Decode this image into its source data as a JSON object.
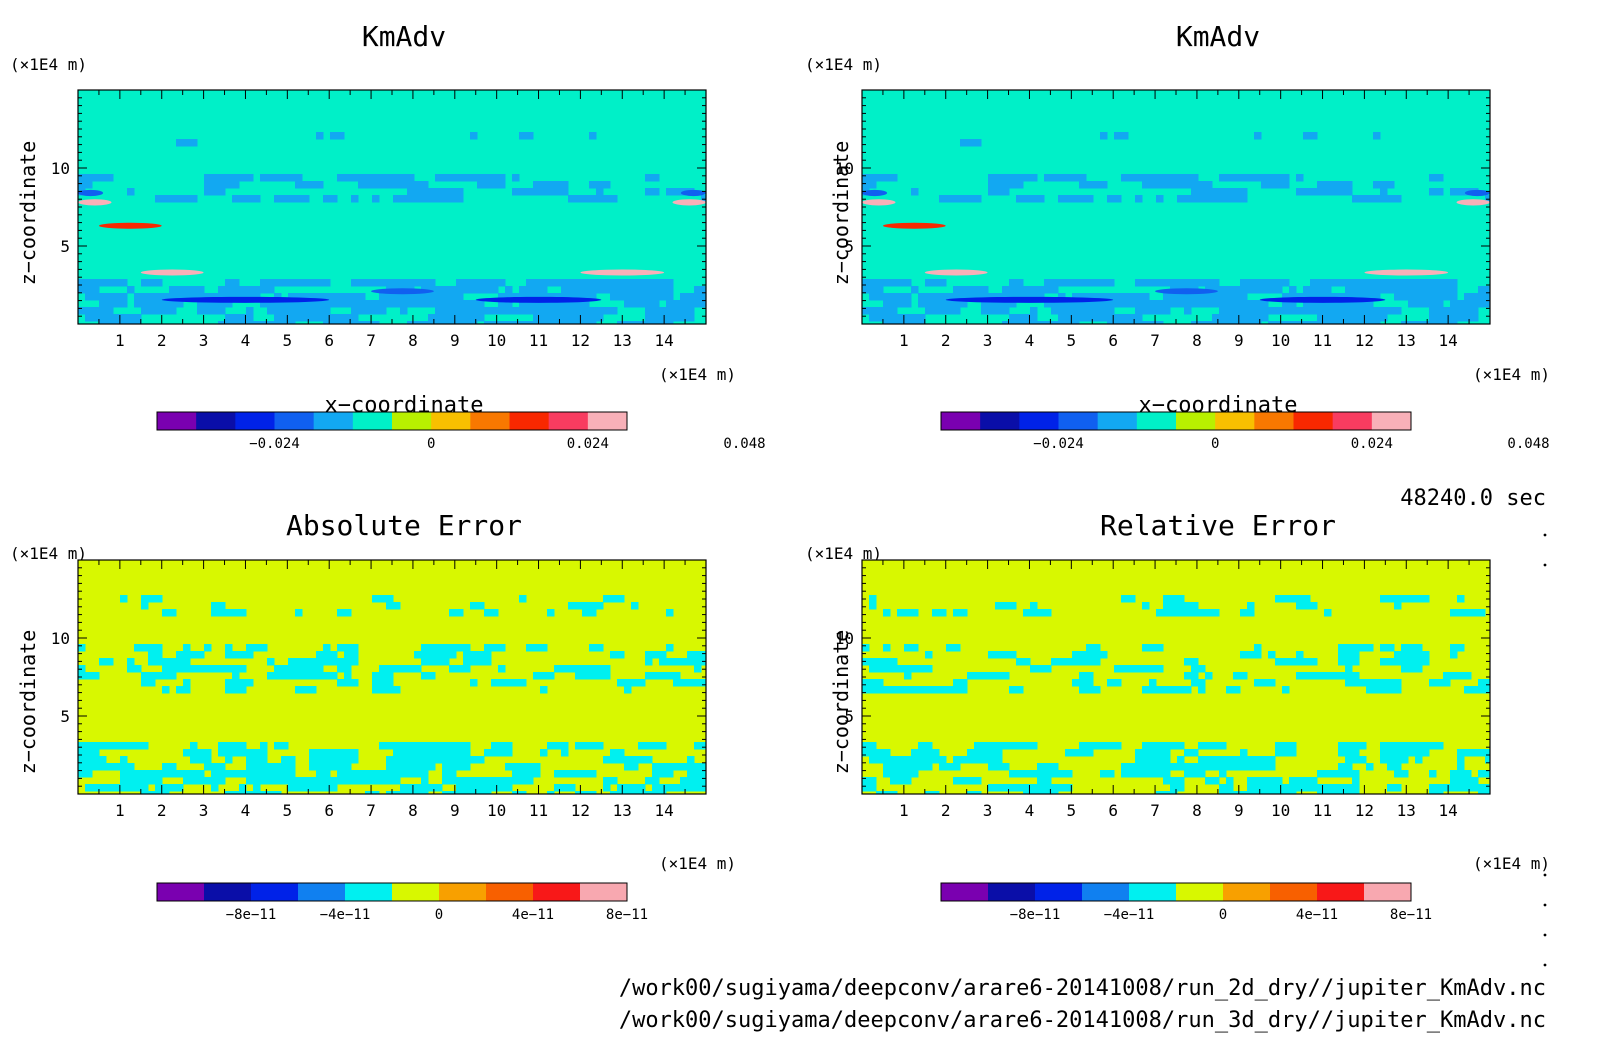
{
  "shared": {
    "x_ticks": [
      "1",
      "2",
      "3",
      "4",
      "5",
      "6",
      "7",
      "8",
      "9",
      "10",
      "11",
      "12",
      "13",
      "14"
    ],
    "y_ticks": [
      "5",
      "10"
    ],
    "x_unit": "(×1E4 m)",
    "y_unit": "(×1E4 m)",
    "xlabel": "x−coordinate",
    "ylabel": "z−coordinate"
  },
  "colors": {
    "kmadv": [
      "#7a00b0",
      "#0a0ea8",
      "#0022e8",
      "#1060f0",
      "#12a8f2",
      "#00f0c8",
      "#b8f000",
      "#f8c000",
      "#f87800",
      "#f82800",
      "#f83c60",
      "#f8b0b8"
    ],
    "error": [
      "#7a00b0",
      "#0a0ea8",
      "#0022e8",
      "#1080f0",
      "#00f0f0",
      "#d8f800",
      "#f8a000",
      "#f86000",
      "#f81818",
      "#f8a8b0"
    ]
  },
  "chart_data": [
    {
      "type": "heatmap",
      "title": "KmAdv",
      "xlabel": "x−coordinate",
      "ylabel": "z−coordinate",
      "xlim": [
        0,
        15
      ],
      "ylim": [
        0,
        15
      ],
      "colorbar_ticks": [
        "−0.024",
        "0",
        "0.024",
        "0.048"
      ],
      "colorbar_levels": [
        -0.036,
        -0.03,
        -0.024,
        -0.018,
        -0.012,
        -0.006,
        0,
        0.006,
        0.012,
        0.018,
        0.024,
        0.03,
        0.036,
        0.042,
        0.048
      ],
      "background_value": 0,
      "features": [
        {
          "x": [
            2.0,
            6.0
          ],
          "z": [
            1.4,
            1.7
          ],
          "value": -0.03
        },
        {
          "x": [
            9.5,
            12.5
          ],
          "z": [
            1.4,
            1.7
          ],
          "value": -0.03
        },
        {
          "x": [
            7.0,
            8.5
          ],
          "z": [
            2.0,
            2.2
          ],
          "value": -0.024
        },
        {
          "x": [
            1.5,
            3.0
          ],
          "z": [
            3.2,
            3.4
          ],
          "value": 0.024
        },
        {
          "x": [
            12.0,
            14.0
          ],
          "z": [
            3.2,
            3.4
          ],
          "value": 0.024
        },
        {
          "x": [
            0.0,
            0.8
          ],
          "z": [
            7.6,
            8.0
          ],
          "value": 0.042
        },
        {
          "x": [
            14.2,
            15.0
          ],
          "z": [
            7.6,
            8.0
          ],
          "value": 0.042
        },
        {
          "x": [
            0.0,
            0.6
          ],
          "z": [
            8.2,
            8.6
          ],
          "value": -0.024
        },
        {
          "x": [
            14.4,
            15.0
          ],
          "z": [
            8.2,
            8.6
          ],
          "value": -0.024
        },
        {
          "x": [
            0.5,
            2.0
          ],
          "z": [
            6.2,
            6.4
          ],
          "value": 0.012
        }
      ]
    },
    {
      "type": "heatmap",
      "title": "KmAdv",
      "xlabel": "x−coordinate",
      "ylabel": "z−coordinate",
      "xlim": [
        0,
        15
      ],
      "ylim": [
        0,
        15
      ],
      "colorbar_ticks": [
        "−0.024",
        "0",
        "0.024",
        "0.048"
      ],
      "colorbar_levels": [
        -0.036,
        -0.03,
        -0.024,
        -0.018,
        -0.012,
        -0.006,
        0,
        0.006,
        0.012,
        0.018,
        0.024,
        0.03,
        0.036,
        0.042,
        0.048
      ],
      "background_value": 0,
      "features": [
        {
          "x": [
            2.0,
            6.0
          ],
          "z": [
            1.4,
            1.7
          ],
          "value": -0.03
        },
        {
          "x": [
            9.5,
            12.5
          ],
          "z": [
            1.4,
            1.7
          ],
          "value": -0.03
        },
        {
          "x": [
            7.0,
            8.5
          ],
          "z": [
            2.0,
            2.2
          ],
          "value": -0.024
        },
        {
          "x": [
            1.5,
            3.0
          ],
          "z": [
            3.2,
            3.4
          ],
          "value": 0.024
        },
        {
          "x": [
            12.0,
            14.0
          ],
          "z": [
            3.2,
            3.4
          ],
          "value": 0.024
        },
        {
          "x": [
            0.0,
            0.8
          ],
          "z": [
            7.6,
            8.0
          ],
          "value": 0.042
        },
        {
          "x": [
            14.2,
            15.0
          ],
          "z": [
            7.6,
            8.0
          ],
          "value": 0.042
        },
        {
          "x": [
            0.0,
            0.6
          ],
          "z": [
            8.2,
            8.6
          ],
          "value": -0.024
        },
        {
          "x": [
            14.4,
            15.0
          ],
          "z": [
            8.2,
            8.6
          ],
          "value": -0.024
        },
        {
          "x": [
            0.5,
            2.0
          ],
          "z": [
            6.2,
            6.4
          ],
          "value": 0.012
        }
      ]
    },
    {
      "type": "heatmap",
      "title": "Absolute Error",
      "xlabel": "x−coordinate",
      "ylabel": "z−coordinate",
      "xlim": [
        0,
        15
      ],
      "ylim": [
        0,
        15
      ],
      "colorbar_ticks": [
        "−8e−11",
        "−4e−11",
        "0",
        "4e−11",
        "8e−11"
      ],
      "colorbar_levels": [
        -1e-10,
        -8e-11,
        -6e-11,
        -4e-11,
        -2e-11,
        0,
        2e-11,
        4e-11,
        6e-11,
        8e-11,
        1e-10
      ],
      "background_value": 0
    },
    {
      "type": "heatmap",
      "title": "Relative Error",
      "xlabel": "x−coordinate",
      "ylabel": "z−coordinate",
      "xlim": [
        0,
        15
      ],
      "ylim": [
        0,
        15
      ],
      "colorbar_ticks": [
        "−8e−11",
        "−4e−11",
        "0",
        "4e−11",
        "8e−11"
      ],
      "colorbar_levels": [
        -1e-10,
        -8e-11,
        -6e-11,
        -4e-11,
        -2e-11,
        0,
        2e-11,
        4e-11,
        6e-11,
        8e-11,
        1e-10
      ],
      "background_value": 0
    }
  ],
  "time_label": "48240.0 sec",
  "file_paths": [
    "/work00/sugiyama/deepconv/arare6-20141008/run_2d_dry//jupiter_KmAdv.nc",
    "/work00/sugiyama/deepconv/arare6-20141008/run_3d_dry//jupiter_KmAdv.nc"
  ]
}
